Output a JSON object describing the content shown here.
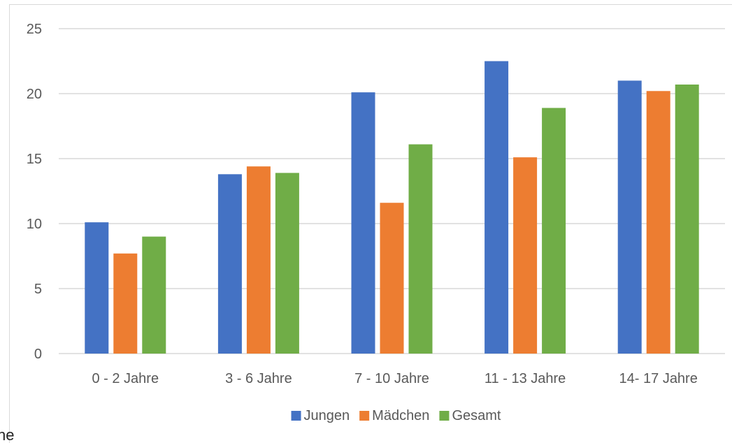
{
  "stray_text": "he",
  "chart_data": {
    "type": "bar",
    "title": "",
    "xlabel": "",
    "ylabel": "",
    "ylim": [
      0,
      25
    ],
    "yticks": [
      0,
      5,
      10,
      15,
      20,
      25
    ],
    "grid": true,
    "legend_position": "bottom",
    "categories": [
      "0 - 2 Jahre",
      "3 - 6 Jahre",
      "7 - 10 Jahre",
      "11 - 13 Jahre",
      "14- 17 Jahre"
    ],
    "series": [
      {
        "name": "Jungen",
        "color": "#4472C4",
        "values": [
          10.1,
          13.8,
          20.1,
          22.5,
          21.0
        ]
      },
      {
        "name": "Mädchen",
        "color": "#ED7D31",
        "values": [
          7.7,
          14.4,
          11.6,
          15.1,
          20.2
        ]
      },
      {
        "name": "Gesamt",
        "color": "#70AD47",
        "values": [
          9.0,
          13.9,
          16.1,
          18.9,
          20.7
        ]
      }
    ]
  }
}
